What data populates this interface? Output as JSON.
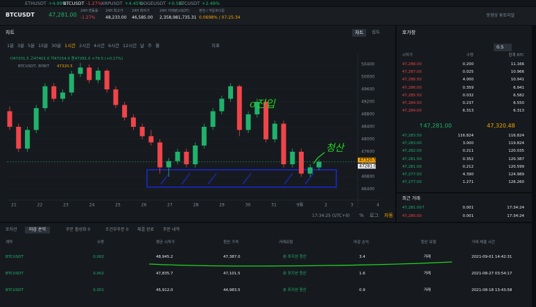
{
  "tickers": [
    {
      "symbol": "ETHUSDT",
      "change": "+4.99%"
    },
    {
      "symbol": "BTCUSDT",
      "change": "-1.27%"
    },
    {
      "symbol": "XRPUSDT",
      "change": "+4.45%"
    },
    {
      "symbol": "DOGEUSDT",
      "change": "+0.5%"
    },
    {
      "symbol": "ETCUSDT",
      "change": "+2.49%"
    }
  ],
  "header": {
    "symbol": "BTCUSDT",
    "price": "47,281.00",
    "stats": [
      {
        "label": "24H 변동률",
        "value": "-1.27%"
      },
      {
        "label": "24H 최고가",
        "value": "48,233.00"
      },
      {
        "label": "24H 최저가",
        "value": "46,585.00"
      },
      {
        "label": "24H 거래량(USDT)",
        "value": "2,358,981,735.31"
      },
      {
        "label": "펀딩 / 카운트다운",
        "value": "0.0698% / 07:25:34"
      }
    ],
    "tutorial": "동영상 튜토리얼"
  },
  "chart_panel": {
    "title": "차트",
    "tabs": [
      "차트",
      "심도"
    ],
    "timeframes": [
      "1분",
      "3분",
      "5분",
      "15분",
      "30분",
      "1시간",
      "2시간",
      "4시간",
      "6시간",
      "12시간",
      "날",
      "주",
      "월"
    ],
    "indicator": "지표",
    "ohlc": "시47201.5 고47401.0 저47154.0 종47281.0 +79.5 (+0.17%)",
    "source": "BTCUSDT, BYBIT",
    "source_price": "47320.5",
    "footer_time": "17:34:25 (UTC+9)",
    "footer_options": [
      "%",
      "로그",
      "자동"
    ],
    "annotations": [
      "o진입",
      "청산"
    ]
  },
  "chart": {
    "type": "candlestick",
    "candles": [
      [
        48900,
        49050,
        48300,
        48400
      ],
      [
        48400,
        48500,
        47600,
        47700
      ],
      [
        47700,
        48400,
        47600,
        48300
      ],
      [
        48300,
        49100,
        48200,
        49000
      ],
      [
        49000,
        49800,
        48900,
        49700
      ],
      [
        49700,
        49800,
        49200,
        49300
      ],
      [
        49300,
        49600,
        49200,
        49500
      ],
      [
        49500,
        50200,
        49400,
        50100
      ],
      [
        50100,
        50450,
        50000,
        50300
      ],
      [
        50300,
        50400,
        49800,
        49900
      ],
      [
        49900,
        50300,
        49800,
        50200
      ],
      [
        50200,
        50250,
        49500,
        49600
      ],
      [
        49600,
        49700,
        49000,
        49100
      ],
      [
        49100,
        49200,
        48600,
        48700
      ],
      [
        48700,
        48800,
        48300,
        48400
      ],
      [
        48400,
        48500,
        48000,
        48100
      ],
      [
        48100,
        48300,
        47800,
        47900
      ],
      [
        47900,
        48000,
        46900,
        47100
      ],
      [
        47100,
        47400,
        46800,
        47300
      ],
      [
        47300,
        47700,
        47200,
        47600
      ],
      [
        47600,
        47700,
        47100,
        47200
      ],
      [
        47200,
        47900,
        47100,
        47800
      ],
      [
        47800,
        48500,
        47700,
        48400
      ],
      [
        48400,
        49000,
        48300,
        48900
      ],
      [
        48900,
        49400,
        48800,
        49300
      ],
      [
        49300,
        49800,
        49200,
        49700
      ],
      [
        49700,
        49750,
        48100,
        48300
      ],
      [
        48300,
        48900,
        48200,
        48800
      ],
      [
        48800,
        49300,
        48700,
        49200
      ],
      [
        49200,
        49300,
        47900,
        48000
      ],
      [
        48000,
        48600,
        47900,
        48500
      ],
      [
        48500,
        48600,
        47100,
        47200
      ],
      [
        47200,
        47700,
        47100,
        47600
      ],
      [
        47600,
        47700,
        46800,
        46900
      ],
      [
        46900,
        47200,
        46800,
        47100
      ],
      [
        47100,
        47350,
        47000,
        47281
      ]
    ],
    "ylim": [
      46200,
      50600
    ],
    "yticks": [
      50400,
      50000,
      49600,
      49200,
      48800,
      48400,
      48000,
      47600,
      47200,
      46800,
      46400
    ],
    "x_labels": [
      "21",
      "22",
      "23",
      "24",
      "25",
      "26",
      "27",
      "28",
      "29",
      "30",
      "31",
      "9월",
      "2",
      "3",
      "4"
    ],
    "mark_price": 47320.5,
    "last_price": {
      "value": 47281,
      "label": "47281.0"
    },
    "grid": true
  },
  "orderbook": {
    "title": "호가창",
    "precision": "0.5",
    "columns": [
      "시작가",
      "수량",
      "합계 BTC"
    ],
    "asks": [
      [
        "47,288.00",
        "0.200",
        "11.166"
      ],
      [
        "47,287.00",
        "0.025",
        "10.966"
      ],
      [
        "47,286.50",
        "4.000",
        "10.941"
      ],
      [
        "47,286.00",
        "0.359",
        "6.941"
      ],
      [
        "47,285.50",
        "0.032",
        "6.582"
      ],
      [
        "47,284.50",
        "0.237",
        "6.550"
      ],
      [
        "47,284.00",
        "6.313",
        "6.313"
      ]
    ],
    "last": "↑47,281.00",
    "mark": "47,320.48",
    "bids": [
      [
        "47,283.50",
        "116.824",
        "116.824"
      ],
      [
        "47,283.00",
        "3.000",
        "119.824"
      ],
      [
        "47,282.00",
        "0.211",
        "120.035"
      ],
      [
        "47,281.50",
        "0.352",
        "120.387"
      ],
      [
        "47,281.00",
        "0.212",
        "120.599"
      ],
      [
        "47,277.50",
        "4.390",
        "124.989"
      ],
      [
        "47,277.00",
        "1.271",
        "126.260"
      ]
    ]
  },
  "recent_trades": {
    "title": "최근 거래",
    "rows": [
      [
        "47,281.00↑",
        "0.001",
        "17:34:24"
      ],
      [
        "47,280.00",
        "0.001",
        "17:34:24"
      ]
    ]
  },
  "positions": {
    "tabs": [
      "포지션",
      "마감 손익",
      "주문 활성화 0",
      "조건부주문 0",
      "체결 완료",
      "주문 내역"
    ],
    "columns": [
      "계약",
      "수량",
      "평균 시작가",
      "청산 가격",
      "거래유형",
      "마감 손익",
      "청산 유형",
      "거래 체결 시간"
    ],
    "rows": [
      [
        "BTCUSDT",
        "0.002",
        "48,945.2",
        "47,387.0",
        "숏 포지션 청산",
        "3.4",
        "거래",
        "2021-09-01 14:42:31"
      ],
      [
        "BTCUSDT",
        "0.002",
        "47,835.7",
        "47,101.5",
        "숏 포지션 청산",
        "1.6",
        "거래",
        "2021-08-27 03:54:17"
      ],
      [
        "BTCUSDT",
        "0.001",
        "45,912.0",
        "44,983.5",
        "숏 포지션 청산",
        "0.9",
        "거래",
        "2021-08-18 13:43:58"
      ]
    ]
  }
}
